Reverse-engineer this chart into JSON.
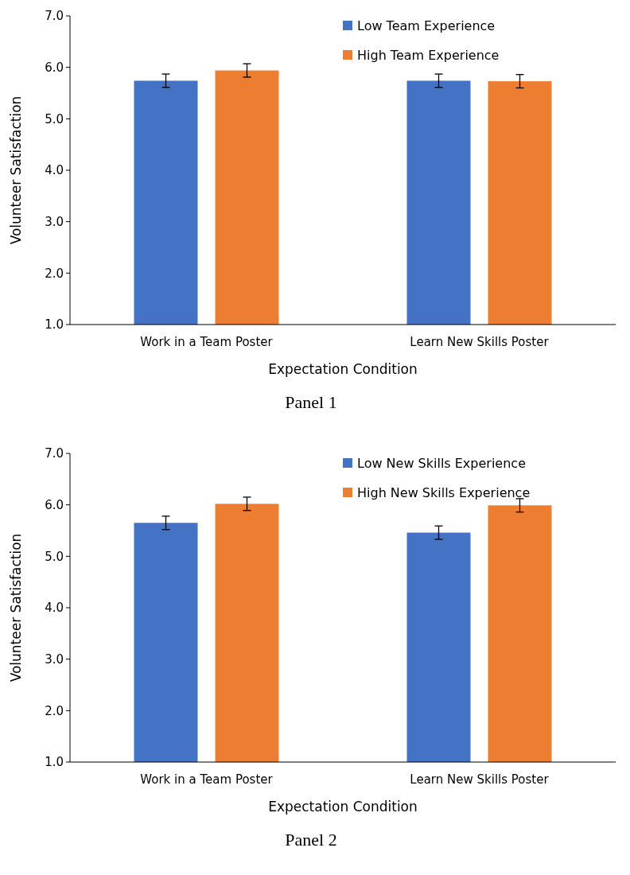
{
  "chart_data": [
    {
      "type": "bar",
      "categories": [
        "Work in a Team Poster",
        "Learn New Skills Poster"
      ],
      "xlabel": "Expectation Condition",
      "ylabel": "Volunteer Satisfaction",
      "ylim": [
        1,
        7
      ],
      "yticks": [
        {
          "value": 1,
          "label": "1.0"
        },
        {
          "value": 2,
          "label": "2.0"
        },
        {
          "value": 3,
          "label": "3.0"
        },
        {
          "value": 4,
          "label": "4.0"
        },
        {
          "value": 5,
          "label": "5.0"
        },
        {
          "value": 6,
          "label": "6.0"
        },
        {
          "value": 7,
          "label": "7.0"
        }
      ],
      "legend": "top right",
      "grid": false,
      "annotations": [
        "Panel 1"
      ],
      "series": [
        {
          "name": "Low Team Experience",
          "color": "#4472c4",
          "values": [
            5.74,
            5.74
          ],
          "errors": [
            0.13,
            0.13
          ]
        },
        {
          "name": "High Team Experience",
          "color": "#ed7d31",
          "values": [
            5.94,
            5.73
          ],
          "errors": [
            0.13,
            0.13
          ]
        }
      ]
    },
    {
      "type": "bar",
      "categories": [
        "Work in a Team Poster",
        "Learn New Skills Poster"
      ],
      "xlabel": "Expectation Condition",
      "ylabel": "Volunteer Satisfaction",
      "ylim": [
        1,
        7
      ],
      "yticks": [
        {
          "value": 1,
          "label": "1.0"
        },
        {
          "value": 2,
          "label": "2.0"
        },
        {
          "value": 3,
          "label": "3.0"
        },
        {
          "value": 4,
          "label": "4.0"
        },
        {
          "value": 5,
          "label": "5.0"
        },
        {
          "value": 6,
          "label": "6.0"
        },
        {
          "value": 7,
          "label": "7.0"
        }
      ],
      "legend": "top right",
      "grid": false,
      "annotations": [
        "Panel 2"
      ],
      "series": [
        {
          "name": "Low New Skills Experience",
          "color": "#4472c4",
          "values": [
            5.65,
            5.46
          ],
          "errors": [
            0.13,
            0.13
          ]
        },
        {
          "name": "High New Skills Experience",
          "color": "#ed7d31",
          "values": [
            6.02,
            5.99
          ],
          "errors": [
            0.13,
            0.13
          ]
        }
      ]
    }
  ]
}
